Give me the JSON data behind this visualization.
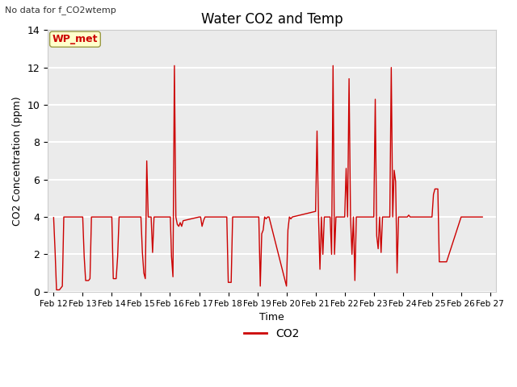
{
  "title": "Water CO2 and Temp",
  "subtitle": "No data for f_CO2wtemp",
  "xlabel": "Time",
  "ylabel": "CO2 Concentration (ppm)",
  "legend_label": "CO2",
  "line_color": "#cc0000",
  "annotation_text": "WP_met",
  "annotation_color": "#cc0000",
  "annotation_bg": "#ffffcc",
  "annotation_edge": "#999944",
  "ylim": [
    0,
    14
  ],
  "yticks": [
    0,
    2,
    4,
    6,
    8,
    10,
    12,
    14
  ],
  "x_tick_labels": [
    "Feb 12",
    "Feb 13",
    "Feb 14",
    "Feb 15",
    "Feb 16",
    "Feb 17",
    "Feb 18",
    "Feb 19",
    "Feb 20",
    "Feb 21",
    "Feb 22",
    "Feb 23",
    "Feb 24",
    "Feb 25",
    "Feb 26",
    "Feb 27"
  ],
  "x_values": [
    0.0,
    0.05,
    0.1,
    0.15,
    0.2,
    0.25,
    0.3,
    0.35,
    1.0,
    1.05,
    1.1,
    1.15,
    1.2,
    1.25,
    1.3,
    1.35,
    1.4,
    1.45,
    1.5,
    2.0,
    2.05,
    2.1,
    2.15,
    2.2,
    2.25,
    2.3,
    2.35,
    2.4,
    3.0,
    3.05,
    3.1,
    3.15,
    3.2,
    3.25,
    3.3,
    3.35,
    3.4,
    3.45,
    4.0,
    4.01,
    4.05,
    4.1,
    4.15,
    4.2,
    4.25,
    4.3,
    4.35,
    4.4,
    4.45,
    5.0,
    5.05,
    5.1,
    5.15,
    5.2,
    5.25,
    5.3,
    5.35,
    5.4,
    5.45,
    5.5,
    5.55,
    5.6,
    5.65,
    5.7,
    5.75,
    5.8,
    5.85,
    5.9,
    5.95,
    6.0,
    6.05,
    6.1,
    6.15,
    7.0,
    7.05,
    7.1,
    7.15,
    7.2,
    7.25,
    7.3,
    7.35,
    7.4,
    8.0,
    8.05,
    8.1,
    8.15,
    8.2,
    9.0,
    9.05,
    9.1,
    9.15,
    9.2,
    9.25,
    9.3,
    9.5,
    9.55,
    9.6,
    9.65,
    9.7,
    9.75,
    10.0,
    10.05,
    10.1,
    10.15,
    10.2,
    10.25,
    10.3,
    10.35,
    10.4,
    10.45,
    10.5,
    11.0,
    11.05,
    11.1,
    11.15,
    11.2,
    11.25,
    11.3,
    11.35,
    11.5,
    11.55,
    11.6,
    11.65,
    11.7,
    11.75,
    11.8,
    11.85,
    12.0,
    12.05,
    12.1,
    12.15,
    12.2,
    12.25,
    12.3,
    12.35,
    12.4,
    12.45,
    13.0,
    13.05,
    13.1,
    13.15,
    13.2,
    13.25,
    13.3,
    13.35,
    13.4,
    13.45,
    13.5,
    14.0,
    14.05,
    14.1,
    14.15,
    14.2,
    14.25,
    14.3,
    14.35,
    14.4,
    14.45,
    14.5,
    14.55,
    14.6,
    14.65,
    14.7,
    14.75
  ],
  "y_values": [
    4.0,
    2.2,
    0.1,
    0.1,
    0.1,
    0.2,
    0.3,
    4.0,
    4.0,
    1.9,
    0.6,
    0.6,
    0.6,
    0.7,
    4.0,
    4.0,
    4.0,
    4.0,
    4.0,
    4.0,
    0.7,
    0.7,
    0.7,
    1.9,
    4.0,
    4.0,
    4.0,
    4.0,
    4.0,
    2.1,
    1.0,
    0.7,
    7.0,
    4.0,
    4.0,
    4.0,
    2.1,
    4.0,
    4.0,
    4.0,
    1.9,
    0.8,
    12.1,
    4.0,
    3.6,
    3.5,
    3.7,
    3.5,
    3.8,
    4.0,
    4.0,
    3.5,
    3.8,
    4.0,
    4.0,
    4.0,
    4.0,
    4.0,
    4.0,
    4.0,
    4.0,
    4.0,
    4.0,
    4.0,
    4.0,
    4.0,
    4.0,
    4.0,
    4.0,
    0.5,
    0.5,
    0.5,
    4.0,
    4.0,
    4.0,
    0.3,
    3.1,
    3.3,
    4.0,
    3.9,
    4.0,
    4.0,
    0.3,
    3.3,
    4.0,
    3.9,
    4.0,
    4.3,
    8.6,
    4.1,
    1.2,
    4.0,
    2.0,
    4.0,
    4.0,
    2.0,
    12.1,
    2.0,
    4.0,
    4.0,
    4.0,
    6.6,
    4.0,
    11.4,
    4.0,
    2.0,
    4.0,
    0.6,
    4.0,
    4.0,
    4.0,
    4.0,
    10.3,
    3.0,
    2.3,
    4.0,
    2.1,
    4.0,
    4.0,
    4.0,
    4.0,
    12.0,
    4.0,
    6.5,
    5.9,
    1.0,
    4.0,
    4.0,
    4.0,
    4.0,
    4.0,
    4.1,
    4.0,
    4.0,
    4.0,
    4.0,
    4.0,
    4.0,
    5.2,
    5.5,
    5.5,
    5.5,
    1.6,
    1.6,
    1.6,
    1.6,
    1.6,
    1.6,
    4.0,
    4.0,
    4.0,
    4.0,
    4.0,
    4.0,
    4.0,
    4.0,
    4.0,
    4.0,
    4.0,
    4.0,
    4.0,
    4.0,
    4.0,
    4.0
  ],
  "background_color": "#ebebeb",
  "grid_color": "#ffffff",
  "fig_bg": "#ffffff"
}
